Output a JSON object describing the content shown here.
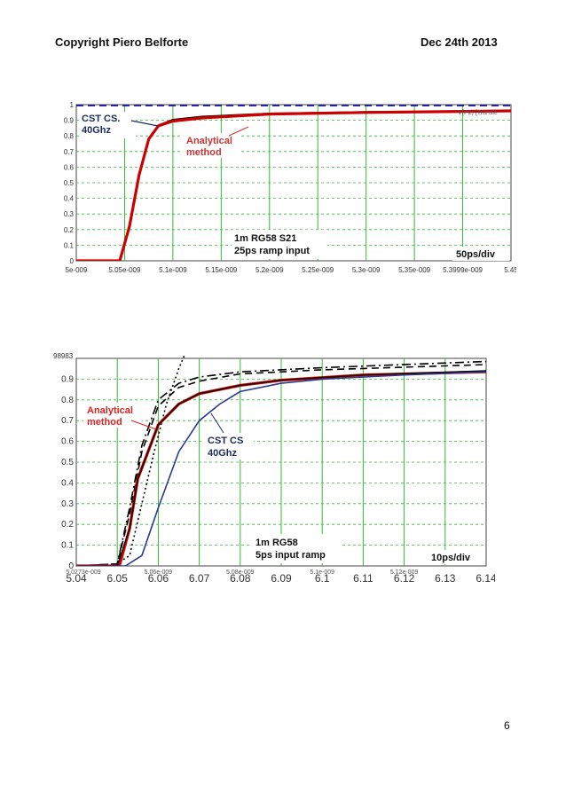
{
  "header": {
    "left": "Copyright Piero Belforte",
    "right": "Dec 24th 2013"
  },
  "page_number": "6",
  "chart_data": [
    {
      "type": "line",
      "xlim": [
        5e-09,
        5.45e-09
      ],
      "ylim": [
        0,
        1.0
      ],
      "grid": true,
      "x_tick_labels": [
        "5e-009",
        "5.05e-009",
        "5.1e-009",
        "5.15e-009",
        "5.2e-009",
        "5.25e-009",
        "5.3e-009",
        "5.35e-009",
        "5.3999e-009",
        "5.45"
      ],
      "y_tick_labels": [
        "0",
        "0.1",
        "0.2",
        "0.3",
        "0.4",
        "0.5",
        "0.6",
        "0.7",
        "0.8",
        "0.9",
        "1"
      ],
      "annotations": {
        "cst": "CST CS.\n40Ghz",
        "analytical": "Analytical\nmethod",
        "title": "1m RG58 S21\n25ps ramp input",
        "scale": "50ps/div",
        "legend_fragment": "V(P2) [Transie"
      },
      "series": [
        {
          "color": "#1a1a99",
          "style": "dashed",
          "x": [
            5e-09,
            5.45e-09
          ],
          "y": [
            0.995,
            0.995
          ]
        },
        {
          "color": "#000000",
          "style": "solid",
          "x": [
            5e-09,
            5.045e-09,
            5.055e-09,
            5.065e-09,
            5.075e-09,
            5.085e-09,
            5.1e-09,
            5.13e-09,
            5.2e-09,
            5.3e-09,
            5.45e-09
          ],
          "y": [
            0,
            0,
            0.22,
            0.55,
            0.78,
            0.87,
            0.905,
            0.925,
            0.945,
            0.955,
            0.96
          ]
        },
        {
          "color": "#cc0000",
          "style": "solid",
          "x": [
            5e-09,
            5.045e-09,
            5.055e-09,
            5.065e-09,
            5.075e-09,
            5.085e-09,
            5.1e-09,
            5.13e-09,
            5.2e-09,
            5.3e-09,
            5.45e-09
          ],
          "y": [
            0,
            0,
            0.22,
            0.55,
            0.78,
            0.865,
            0.895,
            0.915,
            0.94,
            0.95,
            0.96
          ]
        }
      ]
    },
    {
      "type": "line",
      "xlim": [
        6.04,
        6.14
      ],
      "ylim": [
        0,
        1.0
      ],
      "grid": true,
      "x_tick_labels": [
        "5.04",
        "6.05",
        "6.06",
        "6.07",
        "6.08",
        "6.09",
        "6.1",
        "6.11",
        "6.12",
        "6.13",
        "6.14"
      ],
      "x_tick_labels_overlay": [
        "5.0273e-009",
        "5.06e-009",
        "5.08e-009",
        "5.1e-009",
        "5.12e-009"
      ],
      "y_tick_labels": [
        "0",
        "0.1",
        "0.2",
        "0.3",
        "0.4",
        "0.5",
        "0.6",
        "0.7",
        "0.8",
        "0.9"
      ],
      "top_fragment": "98983",
      "annotations": {
        "analytical": "Analytical\nmethod",
        "cst": "CST CS\n40Ghz",
        "title": "1m RG58\n5ps input ramp",
        "scale": "10ps/div"
      },
      "series": [
        {
          "color": "#000000",
          "style": "dotted",
          "x": [
            6.04,
            6.049,
            6.053,
            6.056,
            6.059,
            6.062,
            6.065,
            6.0665
          ],
          "y": [
            0,
            0,
            0.05,
            0.3,
            0.55,
            0.78,
            0.95,
            1.02
          ]
        },
        {
          "color": "#000000",
          "style": "dashdot",
          "x": [
            6.04,
            6.05,
            6.053,
            6.056,
            6.06,
            6.065,
            6.07,
            6.08,
            6.1,
            6.14
          ],
          "y": [
            0,
            0.01,
            0.28,
            0.58,
            0.8,
            0.88,
            0.91,
            0.935,
            0.955,
            0.985
          ]
        },
        {
          "color": "#000000",
          "style": "dashed",
          "x": [
            6.04,
            6.05,
            6.053,
            6.056,
            6.06,
            6.065,
            6.07,
            6.08,
            6.1,
            6.14
          ],
          "y": [
            0,
            0.01,
            0.25,
            0.55,
            0.77,
            0.86,
            0.89,
            0.925,
            0.945,
            0.97
          ]
        },
        {
          "color": "#dd0000",
          "style": "solid",
          "x": [
            6.04,
            6.0505,
            6.053,
            6.055,
            6.06,
            6.065,
            6.07,
            6.08,
            6.09,
            6.11,
            6.14
          ],
          "y": [
            0,
            0,
            0.18,
            0.42,
            0.68,
            0.78,
            0.83,
            0.87,
            0.895,
            0.92,
            0.935
          ]
        },
        {
          "color": "#000000",
          "style": "solid",
          "x": [
            6.04,
            6.05,
            6.053,
            6.055,
            6.06,
            6.065,
            6.07,
            6.08,
            6.09,
            6.11,
            6.14
          ],
          "y": [
            0,
            0,
            0.18,
            0.42,
            0.68,
            0.78,
            0.83,
            0.87,
            0.895,
            0.92,
            0.94
          ]
        },
        {
          "color": "#2b3a8f",
          "style": "solid",
          "x": [
            6.04,
            6.052,
            6.056,
            6.06,
            6.065,
            6.07,
            6.075,
            6.08,
            6.09,
            6.1,
            6.12,
            6.14
          ],
          "y": [
            0,
            0,
            0.05,
            0.28,
            0.55,
            0.7,
            0.78,
            0.84,
            0.88,
            0.9,
            0.92,
            0.935
          ]
        }
      ]
    }
  ]
}
